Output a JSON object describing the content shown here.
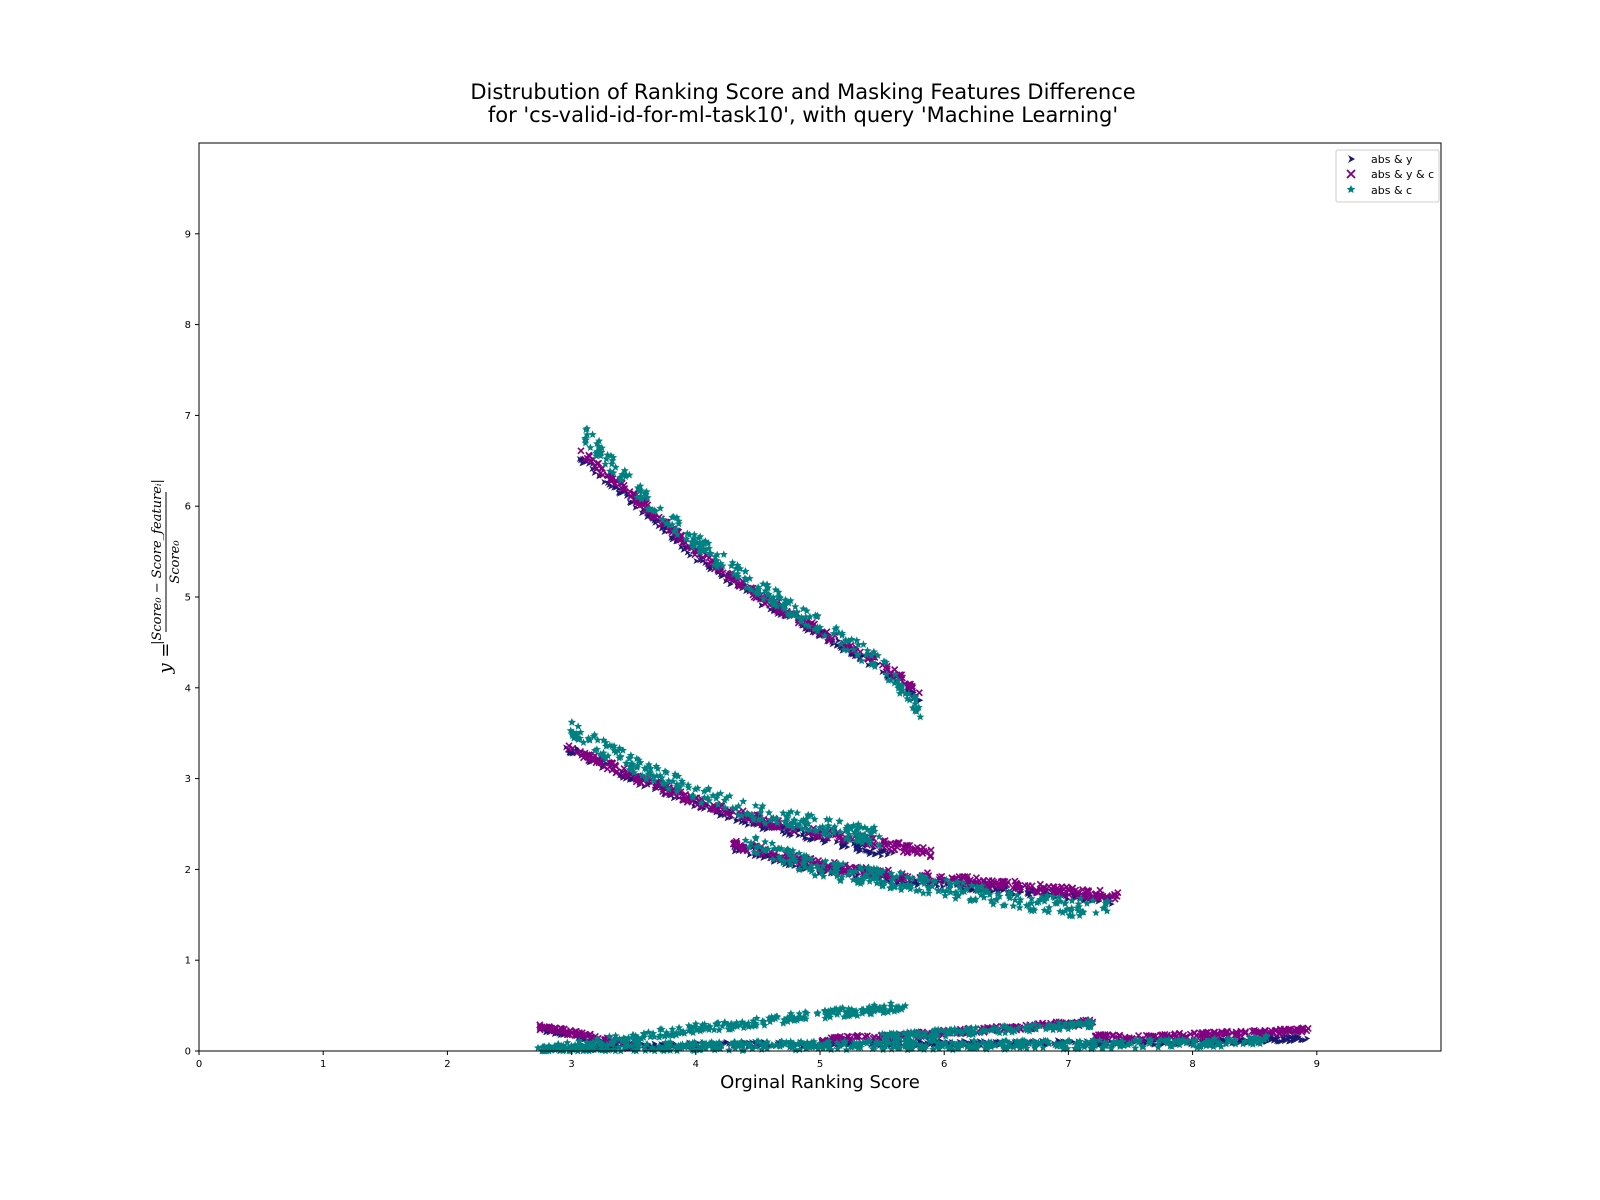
{
  "chart_data": {
    "type": "scatter",
    "title": [
      "Distrubution of Ranking Score and Masking Features Difference",
      "for 'cs-valid-id-for-ml-task10', with query 'Machine Learning'"
    ],
    "xlabel": "Orginal Ranking Score",
    "ylabel": {
      "lhs": "y =",
      "numerator": "|Score₀ − Score_featureᵢ|",
      "denominator": "Score₀"
    },
    "xlim": [
      0,
      10
    ],
    "ylim": [
      0,
      10
    ],
    "x_ticks": [
      0,
      1,
      2,
      3,
      4,
      5,
      6,
      7,
      8,
      9
    ],
    "y_ticks": [
      0,
      1,
      2,
      3,
      4,
      5,
      6,
      7,
      8,
      9
    ],
    "grid": false,
    "legend_position": "top-right",
    "series": [
      {
        "name": "abs & y",
        "marker": "triangle-right",
        "color": "#191970",
        "bands": [
          {
            "x": [
              3.05,
              3.5,
              4.0,
              4.5,
              5.0,
              5.5,
              5.82
            ],
            "y": [
              6.55,
              6.05,
              5.45,
              4.98,
              4.6,
              4.2,
              3.85
            ],
            "spread": 0.05
          },
          {
            "x": [
              2.95,
              3.5,
              4.0,
              4.5,
              5.0,
              5.6
            ],
            "y": [
              3.35,
              3.0,
              2.72,
              2.5,
              2.35,
              2.15
            ],
            "spread": 0.05
          },
          {
            "x": [
              4.3,
              5.0,
              5.5,
              6.0,
              6.5,
              7.0,
              7.35
            ],
            "y": [
              2.25,
              2.0,
              1.9,
              1.85,
              1.78,
              1.72,
              1.65
            ],
            "spread": 0.05
          },
          {
            "x": [
              2.72,
              3.0,
              3.3
            ],
            "y": [
              0.25,
              0.18,
              0.1
            ],
            "spread": 0.03
          },
          {
            "x": [
              2.8,
              3.5,
              4.0,
              5.0,
              6.0,
              7.0,
              8.0,
              8.5,
              8.95
            ],
            "y": [
              0.02,
              0.05,
              0.07,
              0.08,
              0.08,
              0.09,
              0.1,
              0.11,
              0.15
            ],
            "spread": 0.03
          }
        ]
      },
      {
        "name": "abs & y & c",
        "marker": "x",
        "color": "#800080",
        "bands": [
          {
            "x": [
              3.07,
              3.5,
              4.0,
              4.5,
              5.0,
              5.5,
              5.8
            ],
            "y": [
              6.6,
              6.1,
              5.5,
              5.02,
              4.62,
              4.25,
              3.98
            ],
            "spread": 0.05
          },
          {
            "x": [
              2.97,
              3.5,
              4.0,
              4.5,
              5.0,
              5.5,
              5.9
            ],
            "y": [
              3.35,
              3.02,
              2.75,
              2.55,
              2.4,
              2.28,
              2.18
            ],
            "spread": 0.05
          },
          {
            "x": [
              4.3,
              5.0,
              5.5,
              6.0,
              6.5,
              7.0,
              7.4
            ],
            "y": [
              2.28,
              2.05,
              1.95,
              1.9,
              1.83,
              1.76,
              1.7
            ],
            "spread": 0.05
          },
          {
            "x": [
              2.72,
              3.0,
              3.3,
              3.5
            ],
            "y": [
              0.27,
              0.2,
              0.12,
              0.08
            ],
            "spread": 0.03
          },
          {
            "x": [
              5.0,
              5.8,
              6.5,
              7.2
            ],
            "y": [
              0.12,
              0.18,
              0.25,
              0.32
            ],
            "spread": 0.03
          },
          {
            "x": [
              7.2,
              7.8,
              8.5,
              8.95
            ],
            "y": [
              0.15,
              0.16,
              0.2,
              0.24
            ],
            "spread": 0.03
          }
        ]
      },
      {
        "name": "abs & c",
        "marker": "star",
        "color": "#008080",
        "bands": [
          {
            "x": [
              3.1,
              3.5,
              4.0,
              4.5,
              5.0,
              5.5,
              5.82
            ],
            "y": [
              6.8,
              6.2,
              5.6,
              5.1,
              4.68,
              4.25,
              3.75
            ],
            "spread": 0.1
          },
          {
            "x": [
              2.98,
              3.5,
              4.0,
              4.5,
              5.0,
              5.5
            ],
            "y": [
              3.55,
              3.15,
              2.85,
              2.62,
              2.48,
              2.35
            ],
            "spread": 0.1
          },
          {
            "x": [
              4.4,
              5.0,
              5.5,
              6.0,
              6.5,
              7.0,
              7.35
            ],
            "y": [
              2.3,
              2.0,
              1.9,
              1.8,
              1.68,
              1.58,
              1.6
            ],
            "spread": 0.1
          },
          {
            "x": [
              2.72,
              3.5,
              4.0,
              4.5,
              5.0,
              5.4,
              5.7
            ],
            "y": [
              0.0,
              0.15,
              0.25,
              0.32,
              0.4,
              0.45,
              0.5
            ],
            "spread": 0.05
          },
          {
            "x": [
              2.75,
              3.5,
              4.0,
              5.0,
              6.0,
              7.0,
              8.0,
              8.6
            ],
            "y": [
              0.01,
              0.04,
              0.05,
              0.06,
              0.06,
              0.07,
              0.08,
              0.12
            ],
            "spread": 0.05
          },
          {
            "x": [
              5.5,
              6.0,
              6.5,
              7.0,
              7.2
            ],
            "y": [
              0.15,
              0.2,
              0.24,
              0.28,
              0.3
            ],
            "spread": 0.04
          }
        ]
      }
    ]
  }
}
